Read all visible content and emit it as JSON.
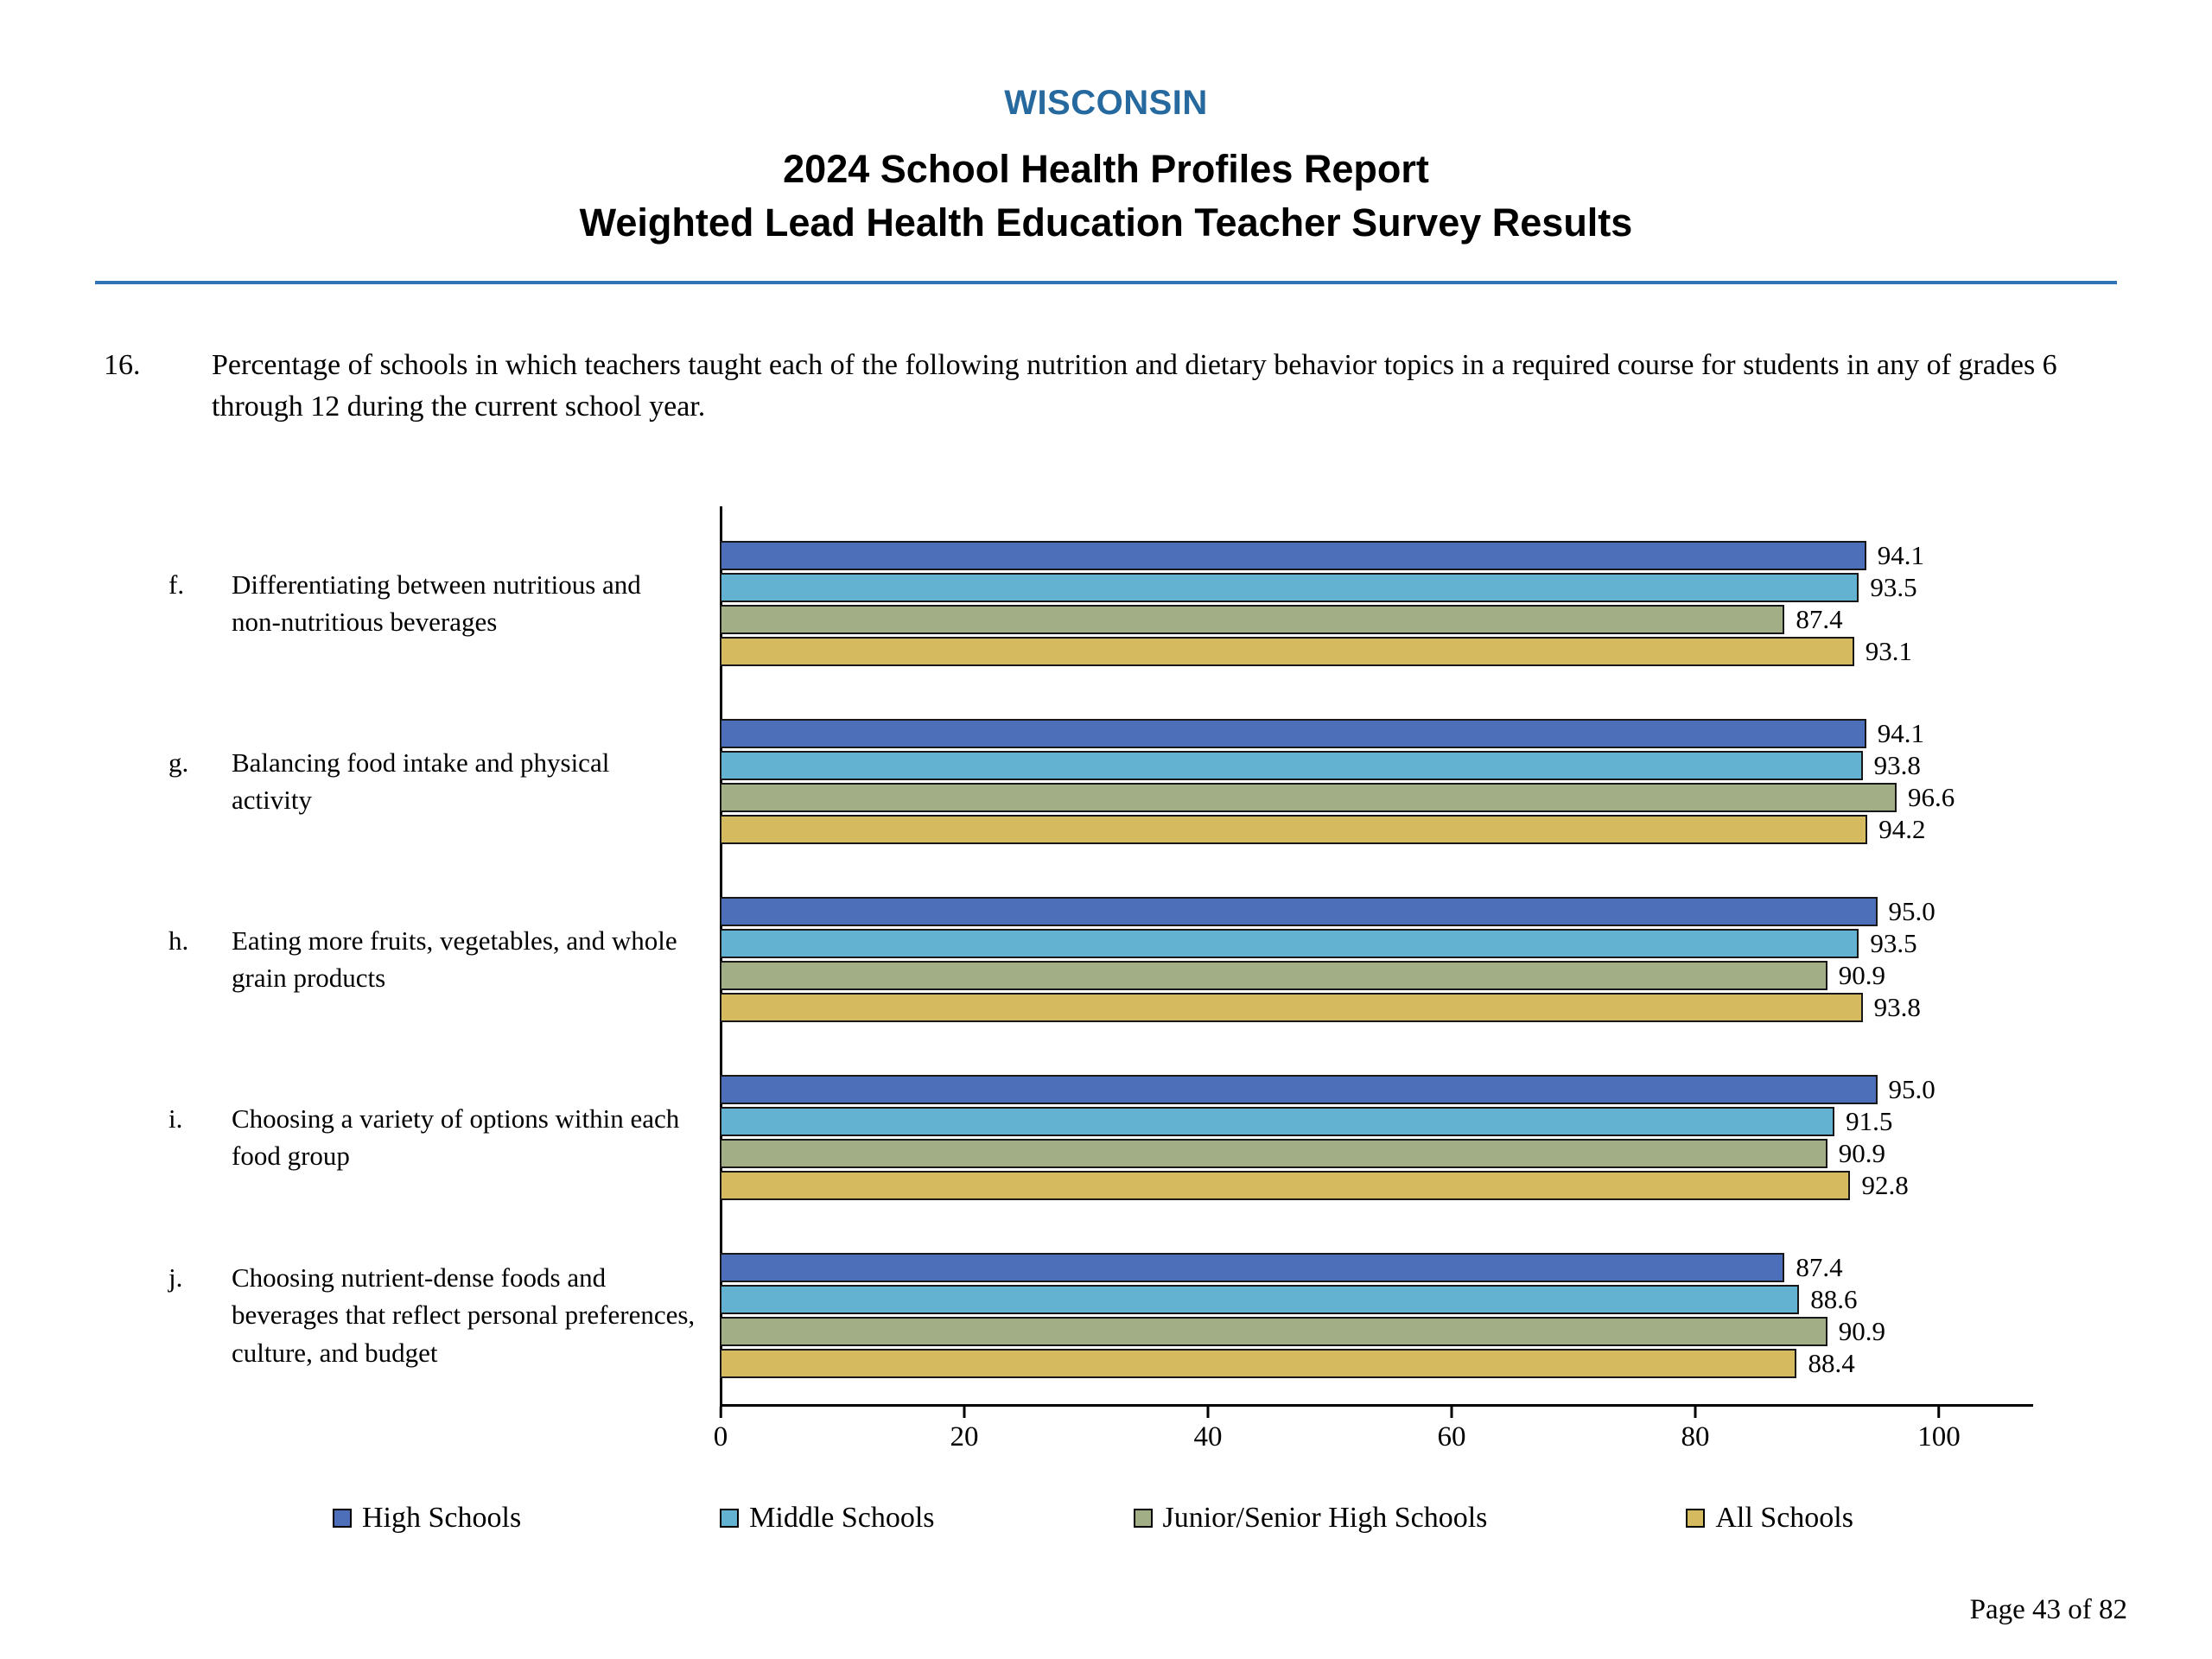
{
  "header": {
    "state": "WISCONSIN",
    "title": "2024 School Health Profiles Report",
    "subtitle": "Weighted Lead Health Education Teacher Survey Results"
  },
  "question": {
    "number": "16.",
    "text": "Percentage of schools in which teachers taught each of the following nutrition and dietary behavior topics in a required course for students in any of grades 6 through 12 during the current school year."
  },
  "chart_data": {
    "type": "bar",
    "orientation": "horizontal",
    "xlim": [
      0,
      100
    ],
    "xticks": [
      0,
      20,
      40,
      60,
      80,
      100
    ],
    "grid": false,
    "value_labels": true,
    "legend_position": "bottom",
    "categories": [
      {
        "letter": "f.",
        "label": "Differentiating between nutritious and non-nutritious beverages"
      },
      {
        "letter": "g.",
        "label": "Balancing food intake and physical activity"
      },
      {
        "letter": "h.",
        "label": "Eating more fruits, vegetables, and whole grain products"
      },
      {
        "letter": "i.",
        "label": "Choosing a variety of options within each food group"
      },
      {
        "letter": "j.",
        "label": "Choosing nutrient-dense foods and beverages that reflect personal preferences, culture, and budget"
      }
    ],
    "series": [
      {
        "name": "High Schools",
        "color": "#4d6fba",
        "values": [
          94.1,
          94.1,
          95.0,
          95.0,
          87.4
        ]
      },
      {
        "name": "Middle Schools",
        "color": "#64b2d2",
        "values": [
          93.5,
          93.8,
          93.5,
          91.5,
          88.6
        ]
      },
      {
        "name": "Junior/Senior High Schools",
        "color": "#a1ae86",
        "values": [
          87.4,
          96.6,
          90.9,
          90.9,
          90.9
        ]
      },
      {
        "name": "All Schools",
        "color": "#d5ba60",
        "values": [
          93.1,
          94.2,
          93.8,
          92.8,
          88.4
        ]
      }
    ]
  },
  "footer": {
    "page_label": "Page 43 of 82"
  },
  "colors": {
    "heading_blue": "#26699e",
    "rule_blue": "#2e74b5",
    "axis_black": "#000000"
  }
}
